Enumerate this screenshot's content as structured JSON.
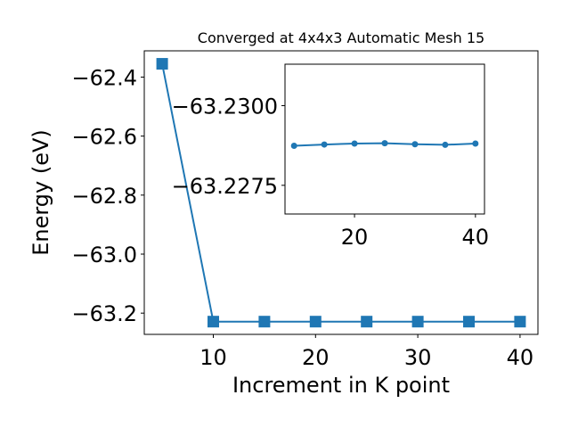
{
  "chart_data": [
    {
      "type": "line",
      "title": "Converged at 4x4x3 Automatic Mesh 15",
      "xlabel": "Increment in K point",
      "ylabel": "Energy (eV)",
      "x": [
        5,
        10,
        15,
        20,
        25,
        30,
        35,
        40
      ],
      "series": [
        {
          "values": [
            -62.355,
            -63.2288,
            -63.2288,
            -63.2288,
            -63.2288,
            -63.2288,
            -63.2288,
            -63.2288
          ],
          "color": "#1f77b4",
          "marker": "square"
        }
      ],
      "xlim": [
        3.25,
        41.75
      ],
      "ylim": [
        -63.272,
        -62.311
      ],
      "xticks": [
        10,
        20,
        30,
        40
      ],
      "xtick_labels": [
        "10",
        "20",
        "30",
        "40"
      ],
      "yticks": [
        -63.2,
        -63.0,
        -62.8,
        -62.6,
        -62.4
      ],
      "ytick_labels": [
        "−63.2",
        "−63.0",
        "−62.8",
        "−62.6",
        "−62.4"
      ],
      "grid": false
    },
    {
      "type": "line",
      "title": "",
      "xlabel": "",
      "ylabel": "",
      "x": [
        10,
        15,
        20,
        25,
        30,
        35,
        40
      ],
      "series": [
        {
          "values": [
            -63.22874,
            -63.22878,
            -63.22881,
            -63.22882,
            -63.22879,
            -63.22877,
            -63.22881
          ],
          "color": "#1f77b4",
          "marker": "circle"
        }
      ],
      "xlim": [
        8.5,
        41.5
      ],
      "ylim": [
        -63.2266,
        -63.2313
      ],
      "xticks": [
        20,
        40
      ],
      "xtick_labels": [
        "20",
        "40"
      ],
      "yticks": [
        -63.23,
        -63.2275
      ],
      "ytick_labels": [
        "−63.2300",
        "−63.2275"
      ],
      "grid": false
    }
  ]
}
